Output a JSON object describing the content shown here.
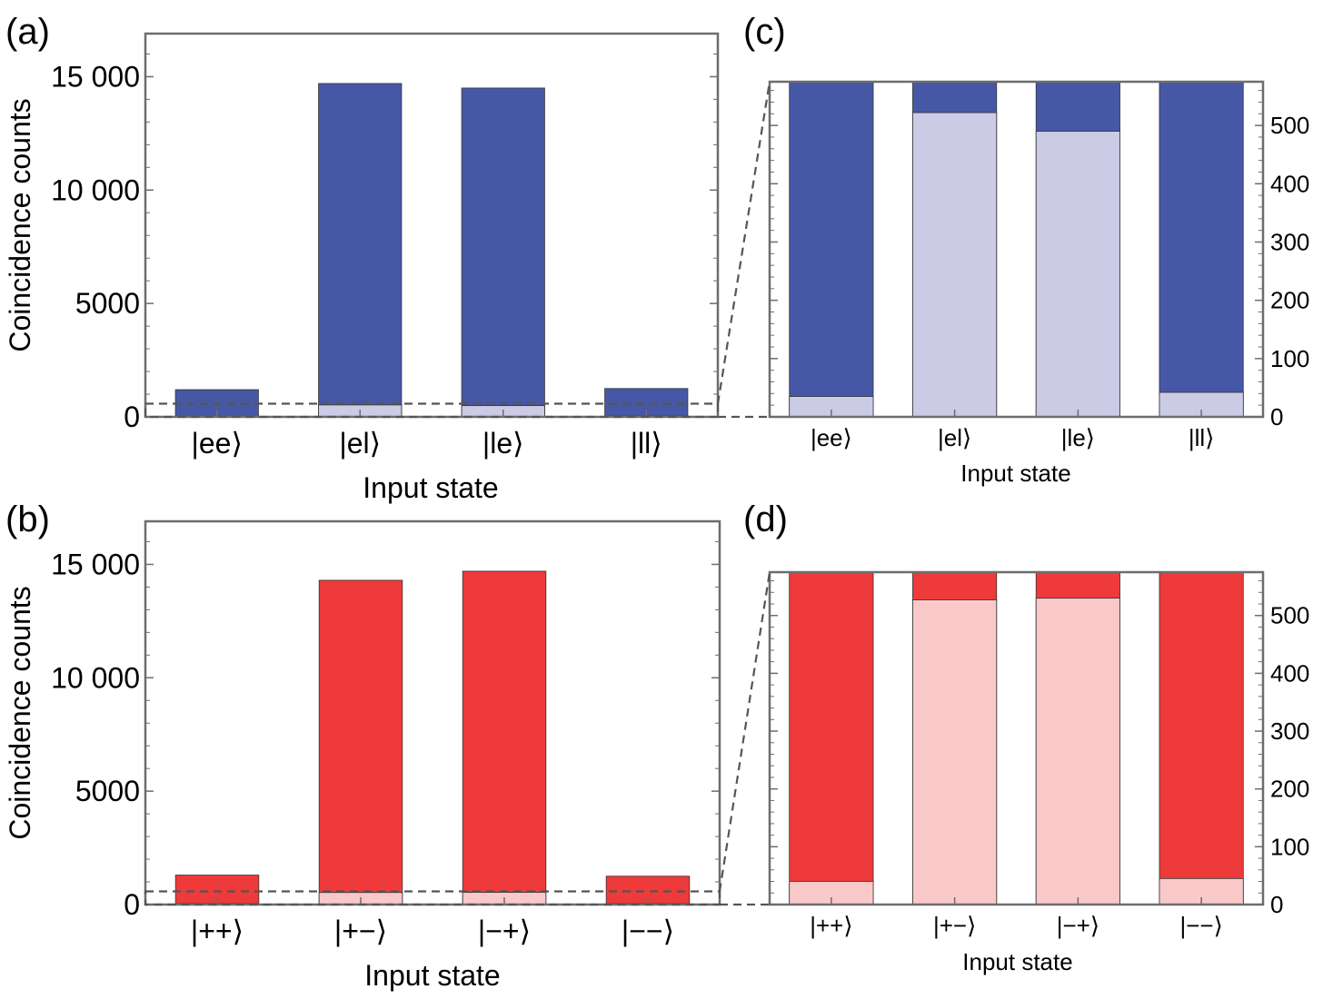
{
  "colors": {
    "blue_total": "#4658A5",
    "blue_error": "#CCCBE6",
    "red_total": "#EE3A3A",
    "red_error": "#F9C9CA",
    "frame": "#6D6D6D",
    "dash": "#555555"
  },
  "chart_data": [
    {
      "panel": "(a)",
      "type": "bar",
      "stacked_overlay": true,
      "categories": [
        "|ee⟩",
        "|el⟩",
        "|le⟩",
        "|ll⟩"
      ],
      "series": [
        {
          "values": [
            1200,
            14700,
            14500,
            1250
          ],
          "color": "#4658A5"
        },
        {
          "values": [
            35,
            525,
            495,
            45
          ],
          "color": "#CCCBE6"
        }
      ],
      "ylabel": "Coincidence counts",
      "xlabel": "Input state",
      "ylim": [
        0,
        16900
      ],
      "yticks": [
        0,
        5000,
        10000,
        15000
      ],
      "ytick_labels": [
        "0",
        "5000",
        "10 000",
        "15 000"
      ],
      "zoom_box_ymax": 580
    },
    {
      "panel": "(b)",
      "type": "bar",
      "stacked_overlay": true,
      "categories": [
        "|++⟩",
        "|+−⟩",
        "|−+⟩",
        "|−−⟩"
      ],
      "series": [
        {
          "values": [
            1300,
            14300,
            14700,
            1250
          ],
          "color": "#EE3A3A"
        },
        {
          "values": [
            45,
            530,
            535,
            45
          ],
          "color": "#F9C9CA"
        }
      ],
      "ylabel": "Coincidence counts",
      "xlabel": "Input state",
      "ylim": [
        0,
        16900
      ],
      "yticks": [
        0,
        5000,
        10000,
        15000
      ],
      "ytick_labels": [
        "0",
        "5000",
        "10 000",
        "15 000"
      ],
      "zoom_box_ymax": 580
    },
    {
      "panel": "(c)",
      "type": "bar",
      "stacked_overlay": true,
      "categories": [
        "|ee⟩",
        "|el⟩",
        "|le⟩",
        "|ll⟩"
      ],
      "series": [
        {
          "values": [
            1200,
            14700,
            14500,
            1250
          ],
          "color": "#4658A5"
        },
        {
          "values": [
            35,
            522,
            490,
            42
          ],
          "color": "#CCCBE6"
        }
      ],
      "xlabel": "Input state",
      "ylim": [
        0,
        575
      ],
      "yticks": [
        0,
        100,
        200,
        300,
        400,
        500
      ],
      "ytick_labels": [
        "0",
        "100",
        "200",
        "300",
        "400",
        "500"
      ]
    },
    {
      "panel": "(d)",
      "type": "bar",
      "stacked_overlay": true,
      "categories": [
        "|++⟩",
        "|+−⟩",
        "|−+⟩",
        "|−−⟩"
      ],
      "series": [
        {
          "values": [
            1300,
            14300,
            14700,
            1250
          ],
          "color": "#EE3A3A"
        },
        {
          "values": [
            40,
            527,
            530,
            45
          ],
          "color": "#F9C9CA"
        }
      ],
      "xlabel": "Input state",
      "ylim": [
        0,
        575
      ],
      "yticks": [
        0,
        100,
        200,
        300,
        400,
        500
      ],
      "ytick_labels": [
        "0",
        "100",
        "200",
        "300",
        "400",
        "500"
      ]
    }
  ]
}
